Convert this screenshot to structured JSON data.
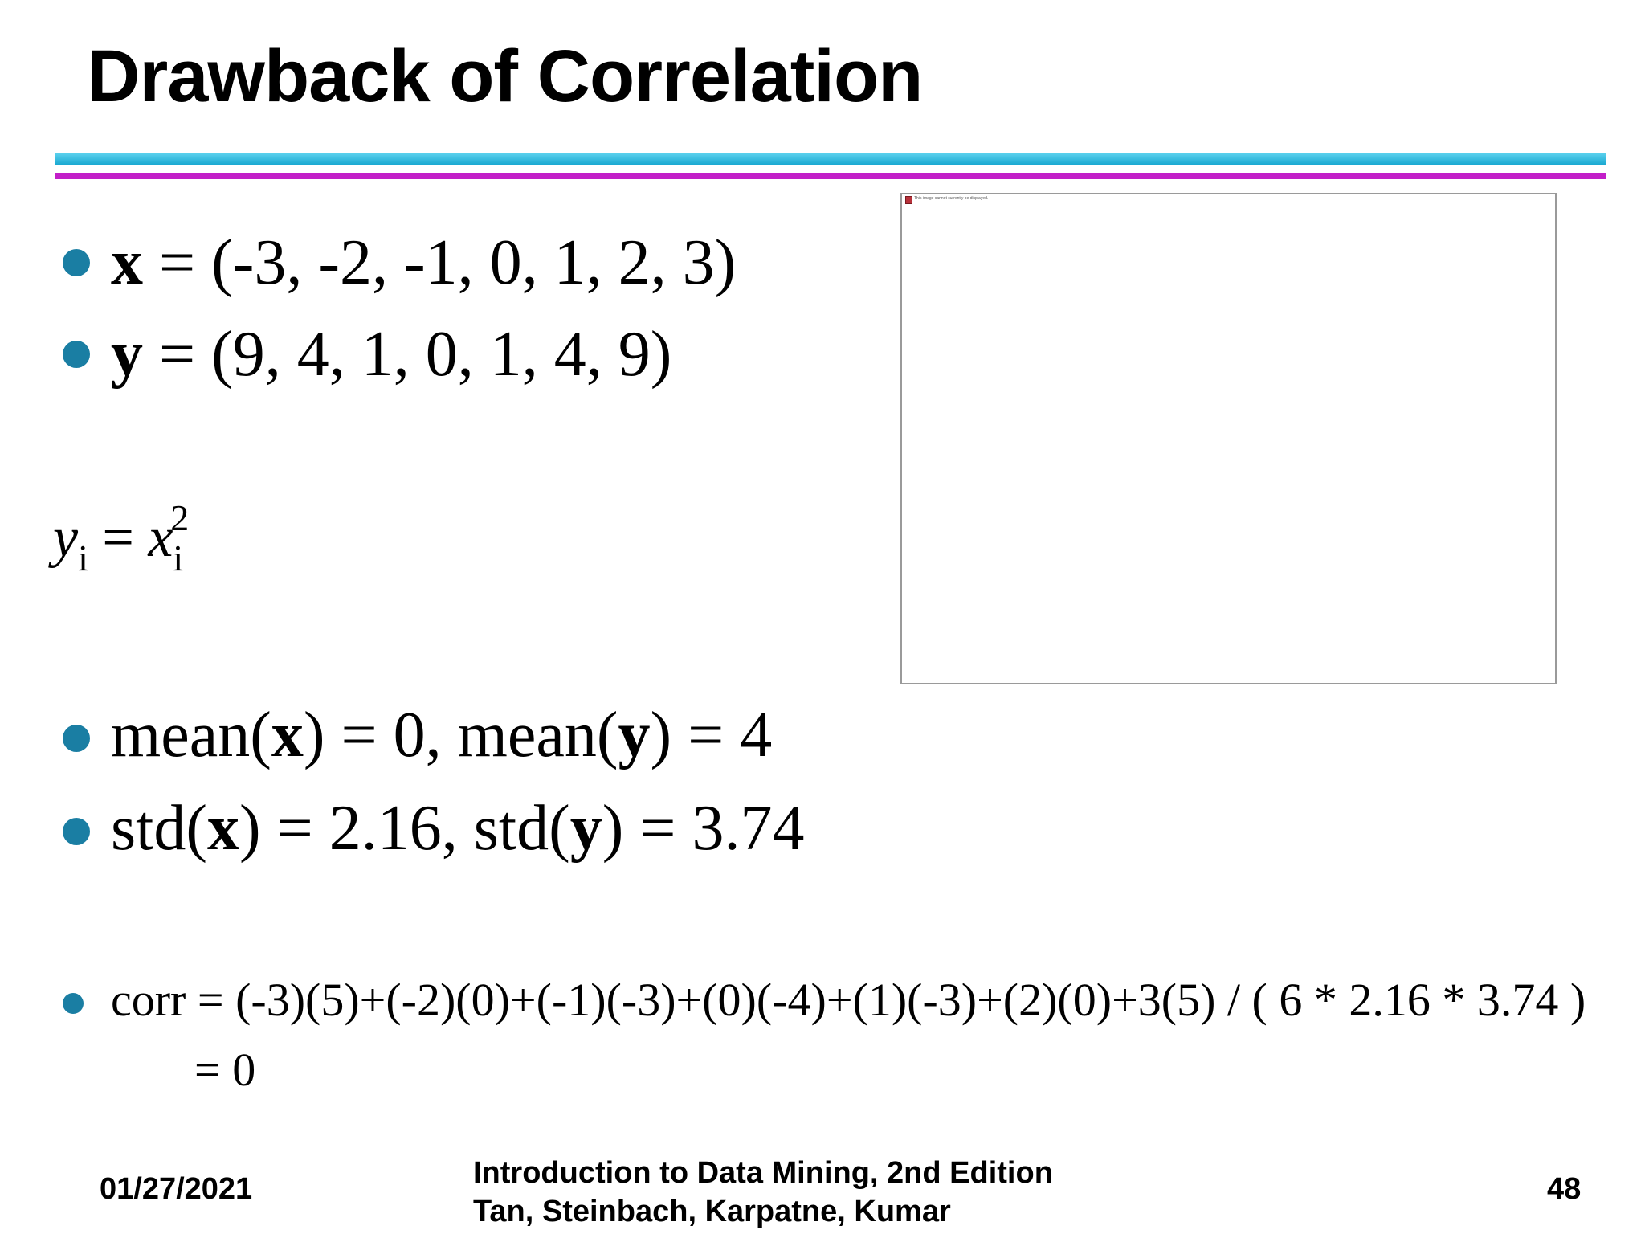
{
  "slide": {
    "title": "Drawback of Correlation",
    "bullets_top": [
      {
        "var": "x",
        "rest": " = (-3, -2, -1, 0, 1, 2, 3)"
      },
      {
        "var": "y",
        "rest": " = (9, 4, 1, 0, 1, 4, 9)"
      }
    ],
    "formula": {
      "lhs": "y",
      "lhs_sub": "i",
      "eq": " = ",
      "rhs": "x",
      "rhs_sub": "i",
      "rhs_sup": "2"
    },
    "stats": {
      "mean": {
        "p1": "mean(",
        "v1": "x",
        "p2": ") = 0, mean(",
        "v2": "y",
        "p3": ") = 4"
      },
      "std": {
        "p1": "std(",
        "v1": "x",
        "p2": ") = 2.16, std(",
        "v2": "y",
        "p3": ") = 3.74"
      }
    },
    "corr": {
      "line1": "corr = (-3)(5)+(-2)(0)+(-1)(-3)+(0)(-4)+(1)(-3)+(2)(0)+3(5) / ( 6 * 2.16 * 3.74 )",
      "line2": "= 0"
    },
    "image_placeholder": {
      "alt_text": "This image cannot currently be displayed."
    },
    "footer": {
      "date": "01/27/2021",
      "book_line1": "Introduction to Data Mining, 2nd Edition",
      "book_line2": "Tan, Steinbach, Karpatne, Kumar",
      "page_number": "48"
    },
    "colors": {
      "bullet": "#1a7ea3",
      "rule_top": "#16a6cf",
      "rule_bottom": "#c21fc8"
    }
  }
}
